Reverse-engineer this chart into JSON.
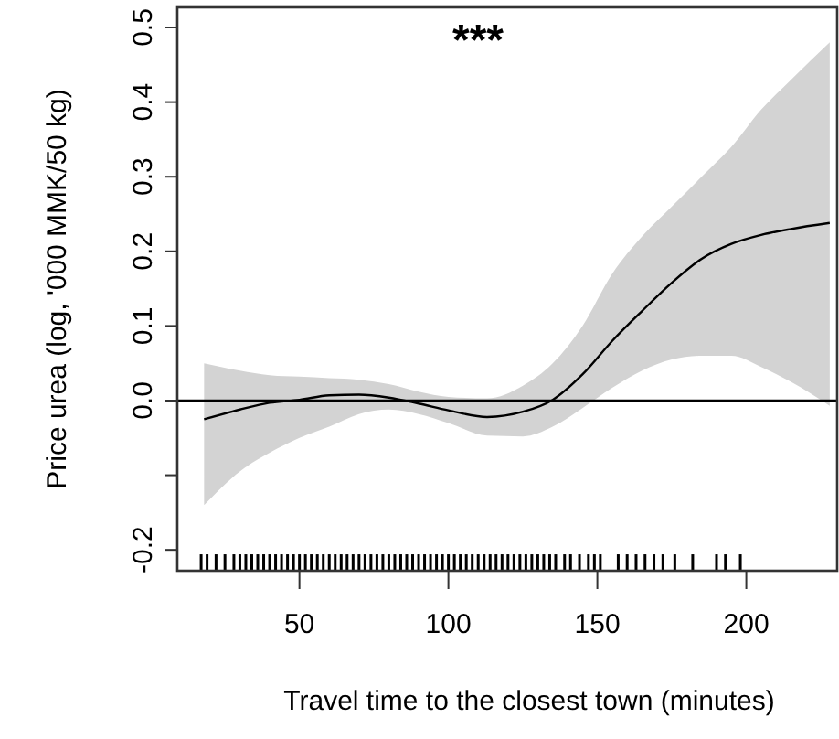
{
  "chart_data": {
    "type": "line",
    "xlabel": "Travel time to the closest town (minutes)",
    "ylabel": "Price urea (log, '000 MMK/50 kg)",
    "annotations": [
      "***"
    ],
    "xlim": [
      9,
      230.5
    ],
    "xticks": [
      50,
      100,
      150,
      200
    ],
    "ylim": [
      -0.228,
      0.527
    ],
    "yticks": [
      {
        "value": -0.2,
        "label": "-0.2"
      },
      {
        "value": -0.1,
        "label": null
      },
      {
        "value": 0,
        "label": "0.0"
      },
      {
        "value": 0.1,
        "label": "0.1"
      },
      {
        "value": 0.2,
        "label": "0.2"
      },
      {
        "value": 0.3,
        "label": "0.3"
      },
      {
        "value": 0.4,
        "label": "0.4"
      },
      {
        "value": 0.5,
        "label": "0.5"
      }
    ],
    "ref_lines": [
      {
        "axis": "y",
        "value": 0,
        "color": "#000000"
      }
    ],
    "grid": false,
    "series": [
      {
        "color": "#000000",
        "x": [
          18,
          30,
          40,
          50,
          60,
          70,
          80,
          90,
          100,
          113,
          125,
          135,
          145,
          155,
          165,
          175,
          185,
          195,
          205,
          215,
          228
        ],
        "values": [
          -0.025,
          -0.012,
          -0.003,
          0.001,
          0.007,
          0.008,
          0.004,
          -0.004,
          -0.013,
          -0.022,
          -0.015,
          0.001,
          0.035,
          0.08,
          0.12,
          0.158,
          0.19,
          0.21,
          0.222,
          0.23,
          0.238
        ],
        "lower": [
          -0.14,
          -0.095,
          -0.07,
          -0.05,
          -0.035,
          -0.018,
          -0.012,
          -0.018,
          -0.03,
          -0.047,
          -0.048,
          -0.035,
          -0.01,
          0.017,
          0.04,
          0.055,
          0.06,
          0.06,
          0.045,
          0.025,
          -0.007
        ],
        "upper": [
          0.05,
          0.04,
          0.034,
          0.032,
          0.03,
          0.028,
          0.022,
          0.012,
          0.005,
          0.003,
          0.02,
          0.05,
          0.1,
          0.17,
          0.22,
          0.26,
          0.3,
          0.34,
          0.39,
          0.43,
          0.48
        ]
      },
      {
        "type": "bar",
        "color": "#000000",
        "x": [
          17,
          19,
          22,
          25,
          28,
          30,
          32,
          34,
          36,
          38,
          40,
          42,
          44,
          46,
          48,
          50,
          52,
          54,
          56,
          58,
          60,
          62,
          64,
          66,
          68,
          70,
          72,
          74,
          76,
          78,
          80,
          82,
          84,
          86,
          88,
          90,
          92,
          94,
          96,
          98,
          100,
          102,
          104,
          106,
          108,
          110,
          112,
          114,
          116,
          118,
          120,
          122,
          124,
          126,
          128,
          130,
          132,
          134,
          136,
          139,
          141,
          144,
          147,
          149,
          151,
          157,
          160,
          163,
          166,
          169,
          172,
          176,
          182,
          190,
          193,
          198
        ],
        "base": [
          -0.228,
          -0.228,
          -0.228,
          -0.228,
          -0.228,
          -0.228,
          -0.228,
          -0.228,
          -0.228,
          -0.228,
          -0.228,
          -0.228,
          -0.228,
          -0.228,
          -0.228,
          -0.228,
          -0.228,
          -0.228,
          -0.228,
          -0.228,
          -0.228,
          -0.228,
          -0.228,
          -0.228,
          -0.228,
          -0.228,
          -0.228,
          -0.228,
          -0.228,
          -0.228,
          -0.228,
          -0.228,
          -0.228,
          -0.228,
          -0.228,
          -0.228,
          -0.228,
          -0.228,
          -0.228,
          -0.228,
          -0.228,
          -0.228,
          -0.228,
          -0.228,
          -0.228,
          -0.228,
          -0.228,
          -0.228,
          -0.228,
          -0.228,
          -0.228,
          -0.228,
          -0.228,
          -0.228,
          -0.228,
          -0.228,
          -0.228,
          -0.228,
          -0.228,
          -0.228,
          -0.228,
          -0.228,
          -0.228,
          -0.228,
          -0.228,
          -0.228,
          -0.228,
          -0.228,
          -0.228,
          -0.228,
          -0.228,
          -0.228,
          -0.228,
          -0.228,
          -0.228,
          -0.228
        ],
        "values": [
          0.022,
          0.022,
          0.022,
          0.022,
          0.022,
          0.022,
          0.022,
          0.022,
          0.022,
          0.022,
          0.022,
          0.022,
          0.022,
          0.022,
          0.022,
          0.022,
          0.022,
          0.022,
          0.022,
          0.022,
          0.022,
          0.022,
          0.022,
          0.022,
          0.022,
          0.022,
          0.022,
          0.022,
          0.022,
          0.022,
          0.022,
          0.022,
          0.022,
          0.022,
          0.022,
          0.022,
          0.022,
          0.022,
          0.022,
          0.022,
          0.022,
          0.022,
          0.022,
          0.022,
          0.022,
          0.022,
          0.022,
          0.022,
          0.022,
          0.022,
          0.022,
          0.022,
          0.022,
          0.022,
          0.022,
          0.022,
          0.022,
          0.022,
          0.022,
          0.022,
          0.022,
          0.022,
          0.022,
          0.022,
          0.022,
          0.022,
          0.022,
          0.022,
          0.022,
          0.022,
          0.022,
          0.022,
          0.022,
          0.022,
          0.022,
          0.022
        ]
      }
    ]
  }
}
